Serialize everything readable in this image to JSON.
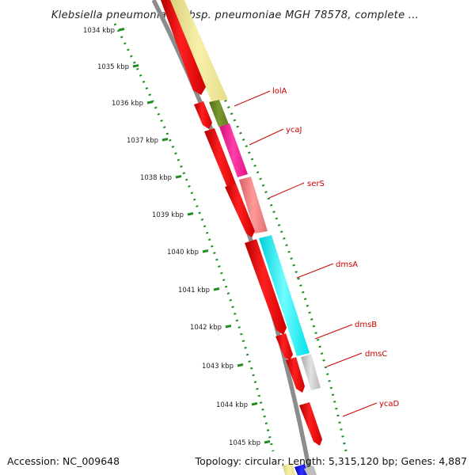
{
  "title": "Klebsiella pneumoniae subsp. pneumoniae MGH 78578, complete ...",
  "ticks": [
    {
      "label": "1034 kbp"
    },
    {
      "label": "1035 kbp"
    },
    {
      "label": "1036 kbp"
    },
    {
      "label": "1037 kbp"
    },
    {
      "label": "1038 kbp"
    },
    {
      "label": "1039 kbp"
    },
    {
      "label": "1040 kbp"
    },
    {
      "label": "1041 kbp"
    },
    {
      "label": "1042 kbp"
    },
    {
      "label": "1043 kbp"
    },
    {
      "label": "1044 kbp"
    },
    {
      "label": "1045 kbp"
    }
  ],
  "genes": [
    {
      "name": "lolA",
      "color": "#6b8e23"
    },
    {
      "name": "ycaJ",
      "color": "#ff1493"
    },
    {
      "name": "serS",
      "color": "#f08080"
    },
    {
      "name": "dmsA",
      "color": "#00ffff"
    },
    {
      "name": "dmsB",
      "color": "#00ffff"
    },
    {
      "name": "dmsC",
      "color": "#c0c0c0"
    },
    {
      "name": "ycaD",
      "color": "#ff0000"
    }
  ],
  "colors": {
    "backbone": "#8c8c8c",
    "cds_strand": "#ff0000",
    "gene_label": "#cc0000",
    "tick_dots": "#228b22",
    "upstream_feature": "#f0e68c",
    "bottom_feature": "#0000ff"
  },
  "footer": {
    "accession": "Accession: NC_009648",
    "summary": "Topology: circular; Length: 5,315,120 bp; Genes: 4,887"
  }
}
